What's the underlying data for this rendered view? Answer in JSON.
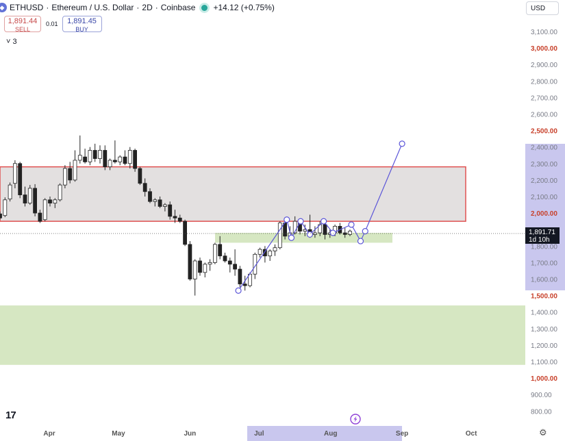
{
  "header": {
    "symbol": "ETHUSD",
    "sep1": "·",
    "name": "Ethereum / U.S. Dollar",
    "sep2": "·",
    "interval": "2D",
    "sep3": "·",
    "exchange": "Coinbase",
    "change": "+14.12 (+0.75%)",
    "icon": "ethereum-icon",
    "status_icon": "market-open-dot"
  },
  "trade": {
    "sell_price": "1,891.44",
    "sell_label": "SELL",
    "spread": "0.01",
    "buy_price": "1,891.45",
    "buy_label": "BUY"
  },
  "indicators_toggle": "˅ 3",
  "currency_button": "USD",
  "logo": "17",
  "colors": {
    "up": "#ffffff",
    "down": "#222222",
    "resistance_zone": "#d9d5d6",
    "resistance_border": "#e05050",
    "support_zone": "#d4e6bf",
    "pattern_line": "#5b55d8",
    "price_label": "#131722"
  },
  "chart_data": {
    "type": "candlestick",
    "symbol": "ETHUSD",
    "interval": "2D",
    "y_range": [
      750,
      3250
    ],
    "y_ticks": [
      {
        "value": 3100,
        "label": "3,100.00",
        "bold": false
      },
      {
        "value": 3000,
        "label": "3,000.00",
        "bold": true
      },
      {
        "value": 2900,
        "label": "2,900.00",
        "bold": false
      },
      {
        "value": 2800,
        "label": "2,800.00",
        "bold": false
      },
      {
        "value": 2700,
        "label": "2,700.00",
        "bold": false
      },
      {
        "value": 2600,
        "label": "2,600.00",
        "bold": false
      },
      {
        "value": 2500,
        "label": "2,500.00",
        "bold": true
      },
      {
        "value": 2400,
        "label": "2,400.00",
        "bold": false
      },
      {
        "value": 2300,
        "label": "2,300.00",
        "bold": false
      },
      {
        "value": 2200,
        "label": "2,200.00",
        "bold": false
      },
      {
        "value": 2100,
        "label": "2,100.00",
        "bold": false
      },
      {
        "value": 2000,
        "label": "2,000.00",
        "bold": true
      },
      {
        "value": 1800,
        "label": "1,800.00",
        "bold": false
      },
      {
        "value": 1700,
        "label": "1,700.00",
        "bold": false
      },
      {
        "value": 1600,
        "label": "1,600.00",
        "bold": false
      },
      {
        "value": 1500,
        "label": "1,500.00",
        "bold": true
      },
      {
        "value": 1400,
        "label": "1,400.00",
        "bold": false
      },
      {
        "value": 1300,
        "label": "1,300.00",
        "bold": false
      },
      {
        "value": 1200,
        "label": "1,200.00",
        "bold": false
      },
      {
        "value": 1100,
        "label": "1,100.00",
        "bold": false
      },
      {
        "value": 1000,
        "label": "1,000.00",
        "bold": true
      },
      {
        "value": 900,
        "label": "900.00",
        "bold": false
      },
      {
        "value": 800,
        "label": "800.00",
        "bold": false
      }
    ],
    "x_ticks": [
      {
        "label": "Apr",
        "bold": false
      },
      {
        "label": "May",
        "bold": false
      },
      {
        "label": "Jun",
        "bold": false
      },
      {
        "label": "Jul",
        "bold": false
      },
      {
        "label": "Aug",
        "bold": false
      },
      {
        "label": "Sep",
        "bold": false
      },
      {
        "label": "Oct",
        "bold": false
      }
    ],
    "current_price": {
      "value": 1891.71,
      "label": "1,891.71",
      "countdown": "1d 10h"
    },
    "candles": [
      {
        "o": 1995,
        "h": 2010,
        "l": 1960,
        "c": 1970
      },
      {
        "o": 1985,
        "h": 2095,
        "l": 1975,
        "c": 2080
      },
      {
        "o": 2085,
        "h": 2185,
        "l": 2070,
        "c": 2170
      },
      {
        "o": 2180,
        "h": 2320,
        "l": 2150,
        "c": 2300
      },
      {
        "o": 2300,
        "h": 2310,
        "l": 2090,
        "c": 2110
      },
      {
        "o": 2110,
        "h": 2160,
        "l": 2040,
        "c": 2060
      },
      {
        "o": 2060,
        "h": 2170,
        "l": 2050,
        "c": 2150
      },
      {
        "o": 2150,
        "h": 2175,
        "l": 1980,
        "c": 2000
      },
      {
        "o": 2000,
        "h": 2020,
        "l": 1940,
        "c": 1950
      },
      {
        "o": 1960,
        "h": 2090,
        "l": 1950,
        "c": 2080
      },
      {
        "o": 2080,
        "h": 2100,
        "l": 2040,
        "c": 2060
      },
      {
        "o": 2060,
        "h": 2090,
        "l": 2030,
        "c": 2080
      },
      {
        "o": 2080,
        "h": 2180,
        "l": 2070,
        "c": 2170
      },
      {
        "o": 2170,
        "h": 2290,
        "l": 2150,
        "c": 2270
      },
      {
        "o": 2270,
        "h": 2310,
        "l": 2180,
        "c": 2200
      },
      {
        "o": 2200,
        "h": 2380,
        "l": 2190,
        "c": 2320
      },
      {
        "o": 2320,
        "h": 2470,
        "l": 2300,
        "c": 2350
      },
      {
        "o": 2340,
        "h": 2390,
        "l": 2300,
        "c": 2310
      },
      {
        "o": 2310,
        "h": 2400,
        "l": 2290,
        "c": 2380
      },
      {
        "o": 2380,
        "h": 2420,
        "l": 2310,
        "c": 2330
      },
      {
        "o": 2330,
        "h": 2410,
        "l": 2300,
        "c": 2380
      },
      {
        "o": 2380,
        "h": 2410,
        "l": 2260,
        "c": 2280
      },
      {
        "o": 2280,
        "h": 2330,
        "l": 2260,
        "c": 2320
      },
      {
        "o": 2320,
        "h": 2440,
        "l": 2300,
        "c": 2310
      },
      {
        "o": 2310,
        "h": 2350,
        "l": 2290,
        "c": 2340
      },
      {
        "o": 2340,
        "h": 2380,
        "l": 2290,
        "c": 2300
      },
      {
        "o": 2300,
        "h": 2400,
        "l": 2270,
        "c": 2380
      },
      {
        "o": 2380,
        "h": 2390,
        "l": 2250,
        "c": 2270
      },
      {
        "o": 2270,
        "h": 2280,
        "l": 2170,
        "c": 2180
      },
      {
        "o": 2180,
        "h": 2210,
        "l": 2100,
        "c": 2130
      },
      {
        "o": 2130,
        "h": 2150,
        "l": 2060,
        "c": 2070
      },
      {
        "o": 2070,
        "h": 2090,
        "l": 2040,
        "c": 2080
      },
      {
        "o": 2080,
        "h": 2100,
        "l": 2030,
        "c": 2040
      },
      {
        "o": 2040,
        "h": 2060,
        "l": 2010,
        "c": 2050
      },
      {
        "o": 2050,
        "h": 2070,
        "l": 1960,
        "c": 1980
      },
      {
        "o": 1980,
        "h": 2020,
        "l": 1940,
        "c": 1970
      },
      {
        "o": 1970,
        "h": 1990,
        "l": 1940,
        "c": 1950
      },
      {
        "o": 1950,
        "h": 1960,
        "l": 1800,
        "c": 1810
      },
      {
        "o": 1810,
        "h": 1830,
        "l": 1590,
        "c": 1600
      },
      {
        "o": 1600,
        "h": 1720,
        "l": 1500,
        "c": 1710
      },
      {
        "o": 1710,
        "h": 1730,
        "l": 1620,
        "c": 1640
      },
      {
        "o": 1640,
        "h": 1700,
        "l": 1610,
        "c": 1690
      },
      {
        "o": 1690,
        "h": 1720,
        "l": 1650,
        "c": 1700
      },
      {
        "o": 1700,
        "h": 1820,
        "l": 1690,
        "c": 1810
      },
      {
        "o": 1810,
        "h": 1860,
        "l": 1720,
        "c": 1740
      },
      {
        "o": 1740,
        "h": 1760,
        "l": 1700,
        "c": 1710
      },
      {
        "o": 1710,
        "h": 1730,
        "l": 1640,
        "c": 1690
      },
      {
        "o": 1690,
        "h": 1780,
        "l": 1620,
        "c": 1660
      },
      {
        "o": 1660,
        "h": 1680,
        "l": 1550,
        "c": 1570
      },
      {
        "o": 1570,
        "h": 1620,
        "l": 1530,
        "c": 1560
      },
      {
        "o": 1560,
        "h": 1640,
        "l": 1550,
        "c": 1630
      },
      {
        "o": 1630,
        "h": 1760,
        "l": 1600,
        "c": 1750
      },
      {
        "o": 1750,
        "h": 1790,
        "l": 1730,
        "c": 1780
      },
      {
        "o": 1780,
        "h": 1800,
        "l": 1700,
        "c": 1740
      },
      {
        "o": 1740,
        "h": 1780,
        "l": 1710,
        "c": 1770
      },
      {
        "o": 1770,
        "h": 1810,
        "l": 1740,
        "c": 1790
      },
      {
        "o": 1790,
        "h": 1950,
        "l": 1780,
        "c": 1940
      },
      {
        "o": 1940,
        "h": 1960,
        "l": 1840,
        "c": 1860
      },
      {
        "o": 1860,
        "h": 1920,
        "l": 1840,
        "c": 1880
      },
      {
        "o": 1880,
        "h": 1980,
        "l": 1870,
        "c": 1950
      },
      {
        "o": 1950,
        "h": 1960,
        "l": 1870,
        "c": 1890
      },
      {
        "o": 1890,
        "h": 1930,
        "l": 1860,
        "c": 1900
      },
      {
        "o": 1900,
        "h": 1990,
        "l": 1850,
        "c": 1870
      },
      {
        "o": 1870,
        "h": 1920,
        "l": 1850,
        "c": 1880
      },
      {
        "o": 1880,
        "h": 1950,
        "l": 1860,
        "c": 1930
      },
      {
        "o": 1930,
        "h": 1940,
        "l": 1840,
        "c": 1870
      },
      {
        "o": 1870,
        "h": 1900,
        "l": 1850,
        "c": 1880
      },
      {
        "o": 1880,
        "h": 1930,
        "l": 1860,
        "c": 1920
      },
      {
        "o": 1920,
        "h": 1940,
        "l": 1870,
        "c": 1880
      },
      {
        "o": 1880,
        "h": 1910,
        "l": 1850,
        "c": 1870
      },
      {
        "o": 1870,
        "h": 1900,
        "l": 1860,
        "c": 1890
      }
    ],
    "zones": [
      {
        "name": "resistance",
        "y1": 1950,
        "y2": 2280,
        "bordered": true
      },
      {
        "name": "support-near",
        "y1": 1820,
        "y2": 1880,
        "bordered": false
      },
      {
        "name": "support-deep",
        "y1": 1080,
        "y2": 1440,
        "bordered": false
      }
    ],
    "pattern_points": [
      {
        "date": "2023-06-22",
        "price": 1530
      },
      {
        "date": "2023-07-13",
        "price": 1960
      },
      {
        "date": "2023-07-15",
        "price": 1850
      },
      {
        "date": "2023-07-19",
        "price": 1950
      },
      {
        "date": "2023-07-23",
        "price": 1870
      },
      {
        "date": "2023-07-29",
        "price": 1950
      },
      {
        "date": "2023-08-02",
        "price": 1880
      },
      {
        "date": "2023-08-10",
        "price": 1930
      },
      {
        "date": "2023-08-14",
        "price": 1830
      },
      {
        "date": "2023-08-16",
        "price": 1890
      },
      {
        "date": "2023-09-01",
        "price": 2420
      }
    ]
  }
}
